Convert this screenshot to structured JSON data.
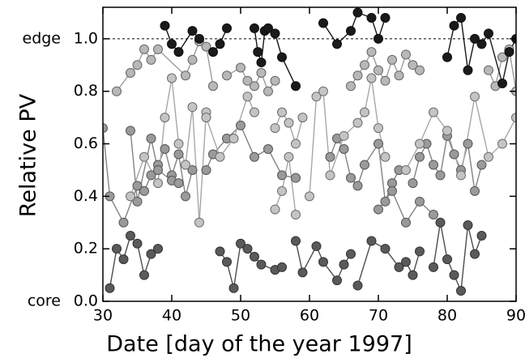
{
  "chart_data": {
    "type": "scatter",
    "xlabel": "Date [day of the year 1997]",
    "ylabel": "Relative PV",
    "annotations": [
      "edge",
      "core"
    ],
    "xlim": [
      30,
      90
    ],
    "xticks": [
      30,
      40,
      50,
      60,
      70,
      80,
      90
    ],
    "ylim": [
      0,
      1.12
    ],
    "yticks": [
      {
        "value": 0,
        "label": "0.0"
      },
      0.2,
      0.4,
      0.6,
      0.8,
      {
        "value": 1,
        "label": "1.0"
      }
    ],
    "reference_line": 1,
    "series": [
      {
        "color": "#9a9a9a",
        "x": [
          30,
          31,
          33,
          35,
          36,
          37,
          38,
          39,
          40,
          41,
          42,
          43
        ],
        "values": [
          0.66,
          0.4,
          0.3,
          0.44,
          0.42,
          0.48,
          0.52,
          0.58,
          0.48,
          0.56,
          0.4,
          0.5
        ]
      },
      {
        "color": "#9a9a9a",
        "x": [
          34,
          35,
          37,
          38,
          40,
          41
        ],
        "values": [
          0.65,
          0.38,
          0.62,
          0.5,
          0.46,
          0.45
        ]
      },
      {
        "color": "#9a9a9a",
        "x": [
          45,
          46,
          48,
          50,
          52,
          54,
          56,
          58
        ],
        "values": [
          0.5,
          0.56,
          0.62,
          0.67,
          0.55,
          0.58,
          0.48,
          0.47
        ]
      },
      {
        "color": "#9a9a9a",
        "x": [
          63,
          64,
          65,
          66,
          67,
          68,
          70,
          71,
          72,
          73
        ],
        "values": [
          0.55,
          0.62,
          0.58,
          0.47,
          0.44,
          0.52,
          0.6,
          0.38,
          0.45,
          0.5
        ]
      },
      {
        "color": "#9a9a9a",
        "x": [
          75,
          76,
          77,
          78,
          79,
          80,
          81,
          82,
          83,
          84,
          85
        ],
        "values": [
          0.45,
          0.55,
          0.6,
          0.52,
          0.48,
          0.63,
          0.56,
          0.5,
          0.6,
          0.42,
          0.52
        ]
      },
      {
        "color": "#9a9a9a",
        "x": [
          70,
          72,
          74,
          76,
          78
        ],
        "values": [
          0.35,
          0.42,
          0.3,
          0.38,
          0.33
        ]
      },
      {
        "color": "#c4c4c4",
        "x": [
          34,
          36,
          38,
          39,
          40,
          41,
          42,
          43,
          44,
          45
        ],
        "values": [
          0.4,
          0.55,
          0.45,
          0.7,
          0.85,
          0.6,
          0.52,
          0.74,
          0.3,
          0.72
        ]
      },
      {
        "color": "#c4c4c4",
        "x": [
          45,
          47,
          49,
          51,
          52
        ],
        "values": [
          0.7,
          0.55,
          0.62,
          0.78,
          0.72
        ]
      },
      {
        "color": "#c4c4c4",
        "x": [
          55,
          56,
          57,
          58,
          59
        ],
        "values": [
          0.66,
          0.72,
          0.68,
          0.6,
          0.7
        ]
      },
      {
        "color": "#c4c4c4",
        "x": [
          60,
          61,
          62,
          63,
          65,
          67,
          68,
          69,
          70,
          71
        ],
        "values": [
          0.4,
          0.78,
          0.8,
          0.48,
          0.63,
          0.68,
          0.72,
          0.85,
          0.66,
          0.55
        ]
      },
      {
        "color": "#c4c4c4",
        "x": [
          74,
          76,
          78,
          80,
          82,
          84,
          86,
          88,
          90
        ],
        "values": [
          0.5,
          0.6,
          0.72,
          0.65,
          0.48,
          0.78,
          0.55,
          0.6,
          0.7
        ]
      },
      {
        "color": "#c4c4c4",
        "x": [
          55,
          56,
          57,
          58
        ],
        "values": [
          0.35,
          0.42,
          0.55,
          0.33
        ]
      },
      {
        "color": "#5a5a5a",
        "x": [
          31,
          32,
          33,
          34,
          35,
          36,
          37,
          38
        ],
        "values": [
          0.05,
          0.2,
          0.16,
          0.25,
          0.22,
          0.1,
          0.18,
          0.2
        ]
      },
      {
        "color": "#5a5a5a",
        "x": [
          47,
          48,
          49,
          50,
          51,
          52,
          53,
          55,
          56
        ],
        "values": [
          0.19,
          0.15,
          0.05,
          0.22,
          0.2,
          0.17,
          0.14,
          0.12,
          0.13
        ]
      },
      {
        "color": "#5a5a5a",
        "x": [
          58,
          59,
          61,
          62,
          64,
          65,
          66
        ],
        "values": [
          0.23,
          0.11,
          0.21,
          0.15,
          0.08,
          0.14,
          0.18
        ]
      },
      {
        "color": "#5a5a5a",
        "x": [
          67,
          69,
          71,
          73,
          74,
          75,
          76
        ],
        "values": [
          0.06,
          0.23,
          0.2,
          0.13,
          0.15,
          0.1,
          0.19
        ]
      },
      {
        "color": "#5a5a5a",
        "x": [
          78,
          79,
          80,
          81,
          82,
          83,
          84,
          85
        ],
        "values": [
          0.13,
          0.3,
          0.16,
          0.1,
          0.04,
          0.29,
          0.18,
          0.25
        ]
      },
      {
        "color": "#b8b8b8",
        "x": [
          32,
          34,
          35,
          36,
          37,
          38,
          42,
          43,
          44,
          45,
          46
        ],
        "values": [
          0.8,
          0.87,
          0.9,
          0.96,
          0.92,
          0.96,
          0.86,
          0.92,
          0.99,
          0.97,
          0.82
        ]
      },
      {
        "color": "#b8b8b8",
        "x": [
          48,
          50,
          51,
          52,
          53,
          54,
          55
        ],
        "values": [
          0.86,
          0.89,
          0.84,
          0.82,
          0.87,
          0.8,
          0.84
        ]
      },
      {
        "color": "#b8b8b8",
        "x": [
          66,
          67,
          68,
          69,
          70,
          71,
          72,
          73,
          74,
          75,
          76
        ],
        "values": [
          0.82,
          0.86,
          0.9,
          0.95,
          0.88,
          0.84,
          0.92,
          0.86,
          0.94,
          0.9,
          0.88
        ]
      },
      {
        "color": "#b8b8b8",
        "x": [
          86,
          87,
          88,
          89,
          90
        ],
        "values": [
          0.88,
          0.82,
          0.93,
          0.96,
          0.8
        ]
      },
      {
        "color": "#1a1a1a",
        "x": [
          39,
          40,
          41,
          43,
          44,
          46,
          47,
          48
        ],
        "values": [
          1.05,
          0.98,
          0.95,
          1.03,
          1.0,
          0.95,
          0.98,
          1.04
        ]
      },
      {
        "color": "#1a1a1a",
        "x": [
          52,
          52.5,
          53,
          53.5,
          54,
          55,
          56,
          58
        ],
        "values": [
          1.04,
          0.95,
          0.91,
          1.03,
          1.04,
          1.02,
          0.93,
          0.82
        ]
      },
      {
        "color": "#1a1a1a",
        "x": [
          62,
          64,
          66,
          67,
          69,
          70,
          71
        ],
        "values": [
          1.06,
          0.98,
          1.03,
          1.1,
          1.08,
          1.0,
          1.08
        ]
      },
      {
        "color": "#1a1a1a",
        "x": [
          80,
          81,
          82,
          83,
          84,
          85,
          86,
          88,
          89,
          90
        ],
        "values": [
          0.93,
          1.05,
          1.08,
          0.88,
          1.0,
          0.98,
          1.02,
          0.83,
          0.95,
          1.0
        ]
      }
    ]
  }
}
